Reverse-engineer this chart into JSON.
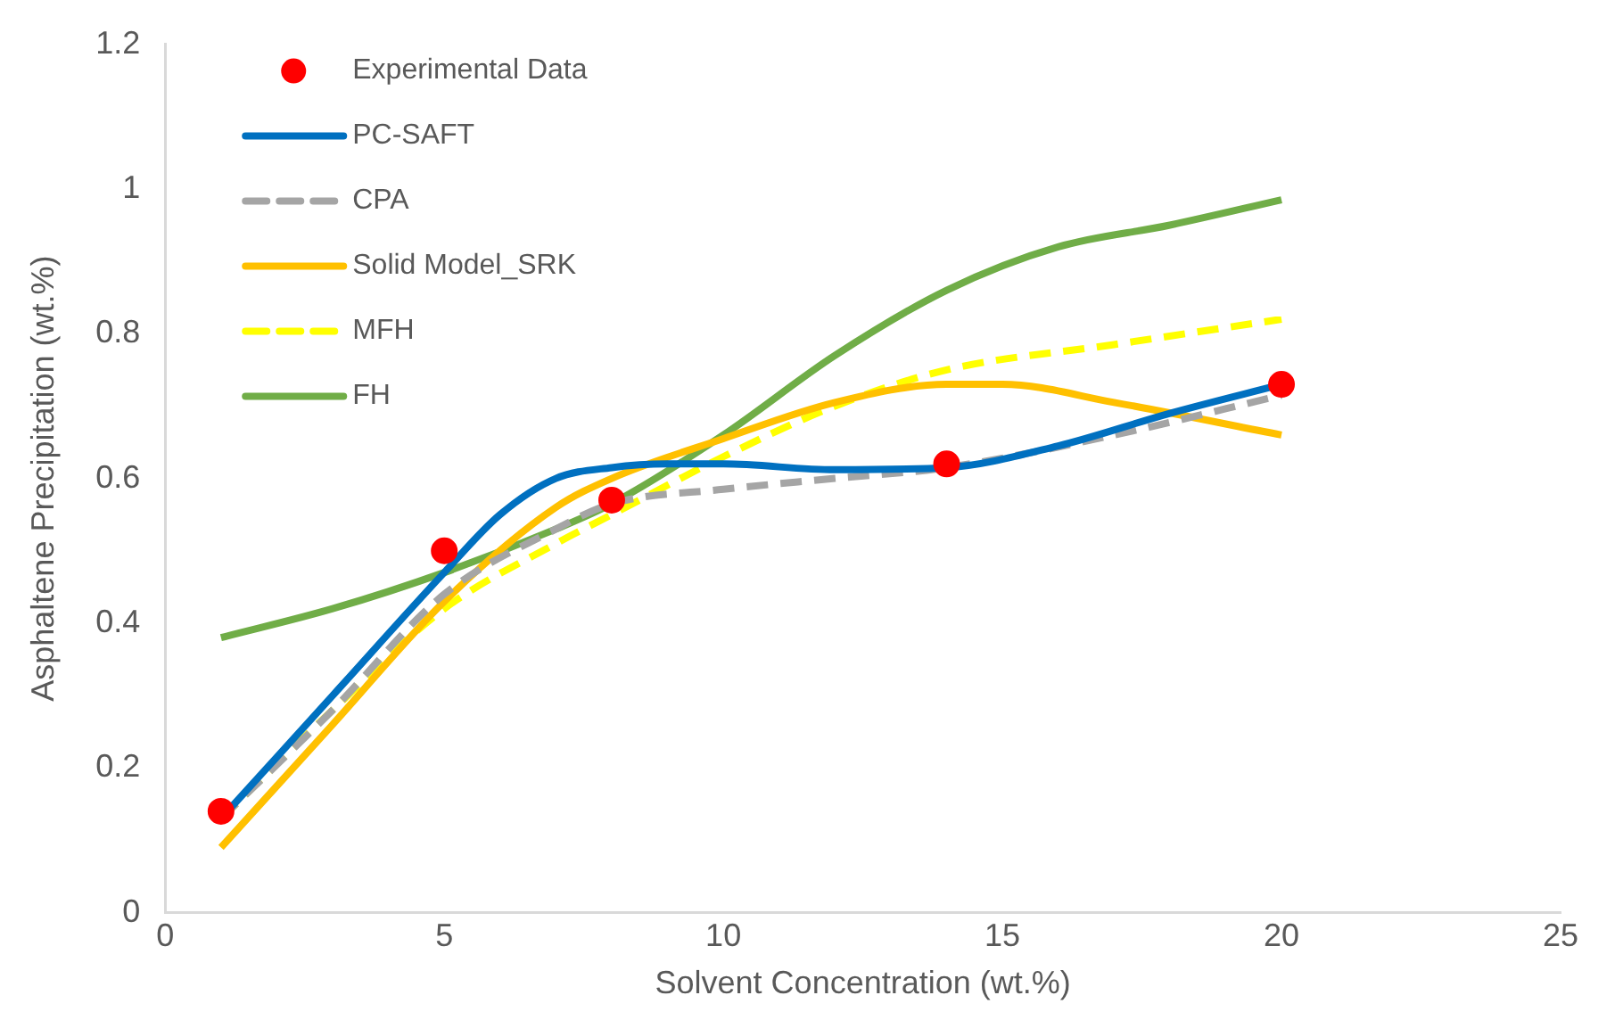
{
  "chart_data": {
    "type": "line",
    "xlabel": "Solvent Concentration (wt.%)",
    "ylabel": "Asphaltene Precipitation (wt.%)",
    "xlim": [
      0,
      25
    ],
    "xticks": [
      0,
      5,
      10,
      15,
      20,
      25
    ],
    "ylim": [
      0,
      1.2
    ],
    "yticks": [
      0,
      0.2,
      0.4,
      0.6,
      0.8,
      1,
      1.2
    ],
    "grid": false,
    "legend": "top left",
    "series": [
      {
        "name": "Experimental Data",
        "type": "scatter",
        "marker": "circle",
        "color": "#ff0000",
        "x": [
          1,
          5,
          8,
          14,
          20
        ],
        "values": [
          0.14,
          0.5,
          0.57,
          0.62,
          0.73
        ]
      },
      {
        "name": "PC-SAFT",
        "type": "line",
        "marker": "none",
        "line_style": "solid",
        "color": "#0070c0",
        "x": [
          1,
          3,
          5,
          6,
          7,
          8,
          9,
          10,
          12,
          14,
          16,
          18,
          20
        ],
        "values": [
          0.13,
          0.3,
          0.47,
          0.55,
          0.6,
          0.615,
          0.62,
          0.62,
          0.612,
          0.615,
          0.645,
          0.69,
          0.73
        ]
      },
      {
        "name": "CPA",
        "type": "line",
        "marker": "none",
        "line_style": "dashed",
        "color": "#a5a5a5",
        "x": [
          1,
          3,
          5,
          7,
          8,
          10,
          12,
          14,
          17,
          20
        ],
        "values": [
          0.13,
          0.28,
          0.44,
          0.53,
          0.565,
          0.585,
          0.6,
          0.615,
          0.66,
          0.715
        ]
      },
      {
        "name": "Solid Model_SRK",
        "type": "line",
        "marker": "none",
        "line_style": "solid",
        "color": "#ffc000",
        "x": [
          1,
          3,
          5,
          7,
          8,
          10,
          12,
          14,
          15,
          17,
          20
        ],
        "values": [
          0.09,
          0.26,
          0.43,
          0.56,
          0.6,
          0.655,
          0.705,
          0.73,
          0.73,
          0.705,
          0.66
        ]
      },
      {
        "name": "MFH",
        "type": "line",
        "marker": "none",
        "line_style": "dashed",
        "color": "#ffff00",
        "x": [
          1,
          3,
          5,
          7,
          8,
          10,
          12,
          14,
          17,
          20
        ],
        "values": [
          0.13,
          0.28,
          0.42,
          0.51,
          0.55,
          0.63,
          0.7,
          0.75,
          0.785,
          0.82
        ]
      },
      {
        "name": "FH",
        "type": "line",
        "marker": "none",
        "line_style": "solid",
        "color": "#70ad47",
        "x": [
          1,
          3,
          5,
          7,
          8,
          10,
          12,
          14,
          16,
          18,
          20
        ],
        "values": [
          0.38,
          0.42,
          0.47,
          0.53,
          0.565,
          0.66,
          0.77,
          0.86,
          0.92,
          0.95,
          0.985
        ]
      }
    ]
  }
}
